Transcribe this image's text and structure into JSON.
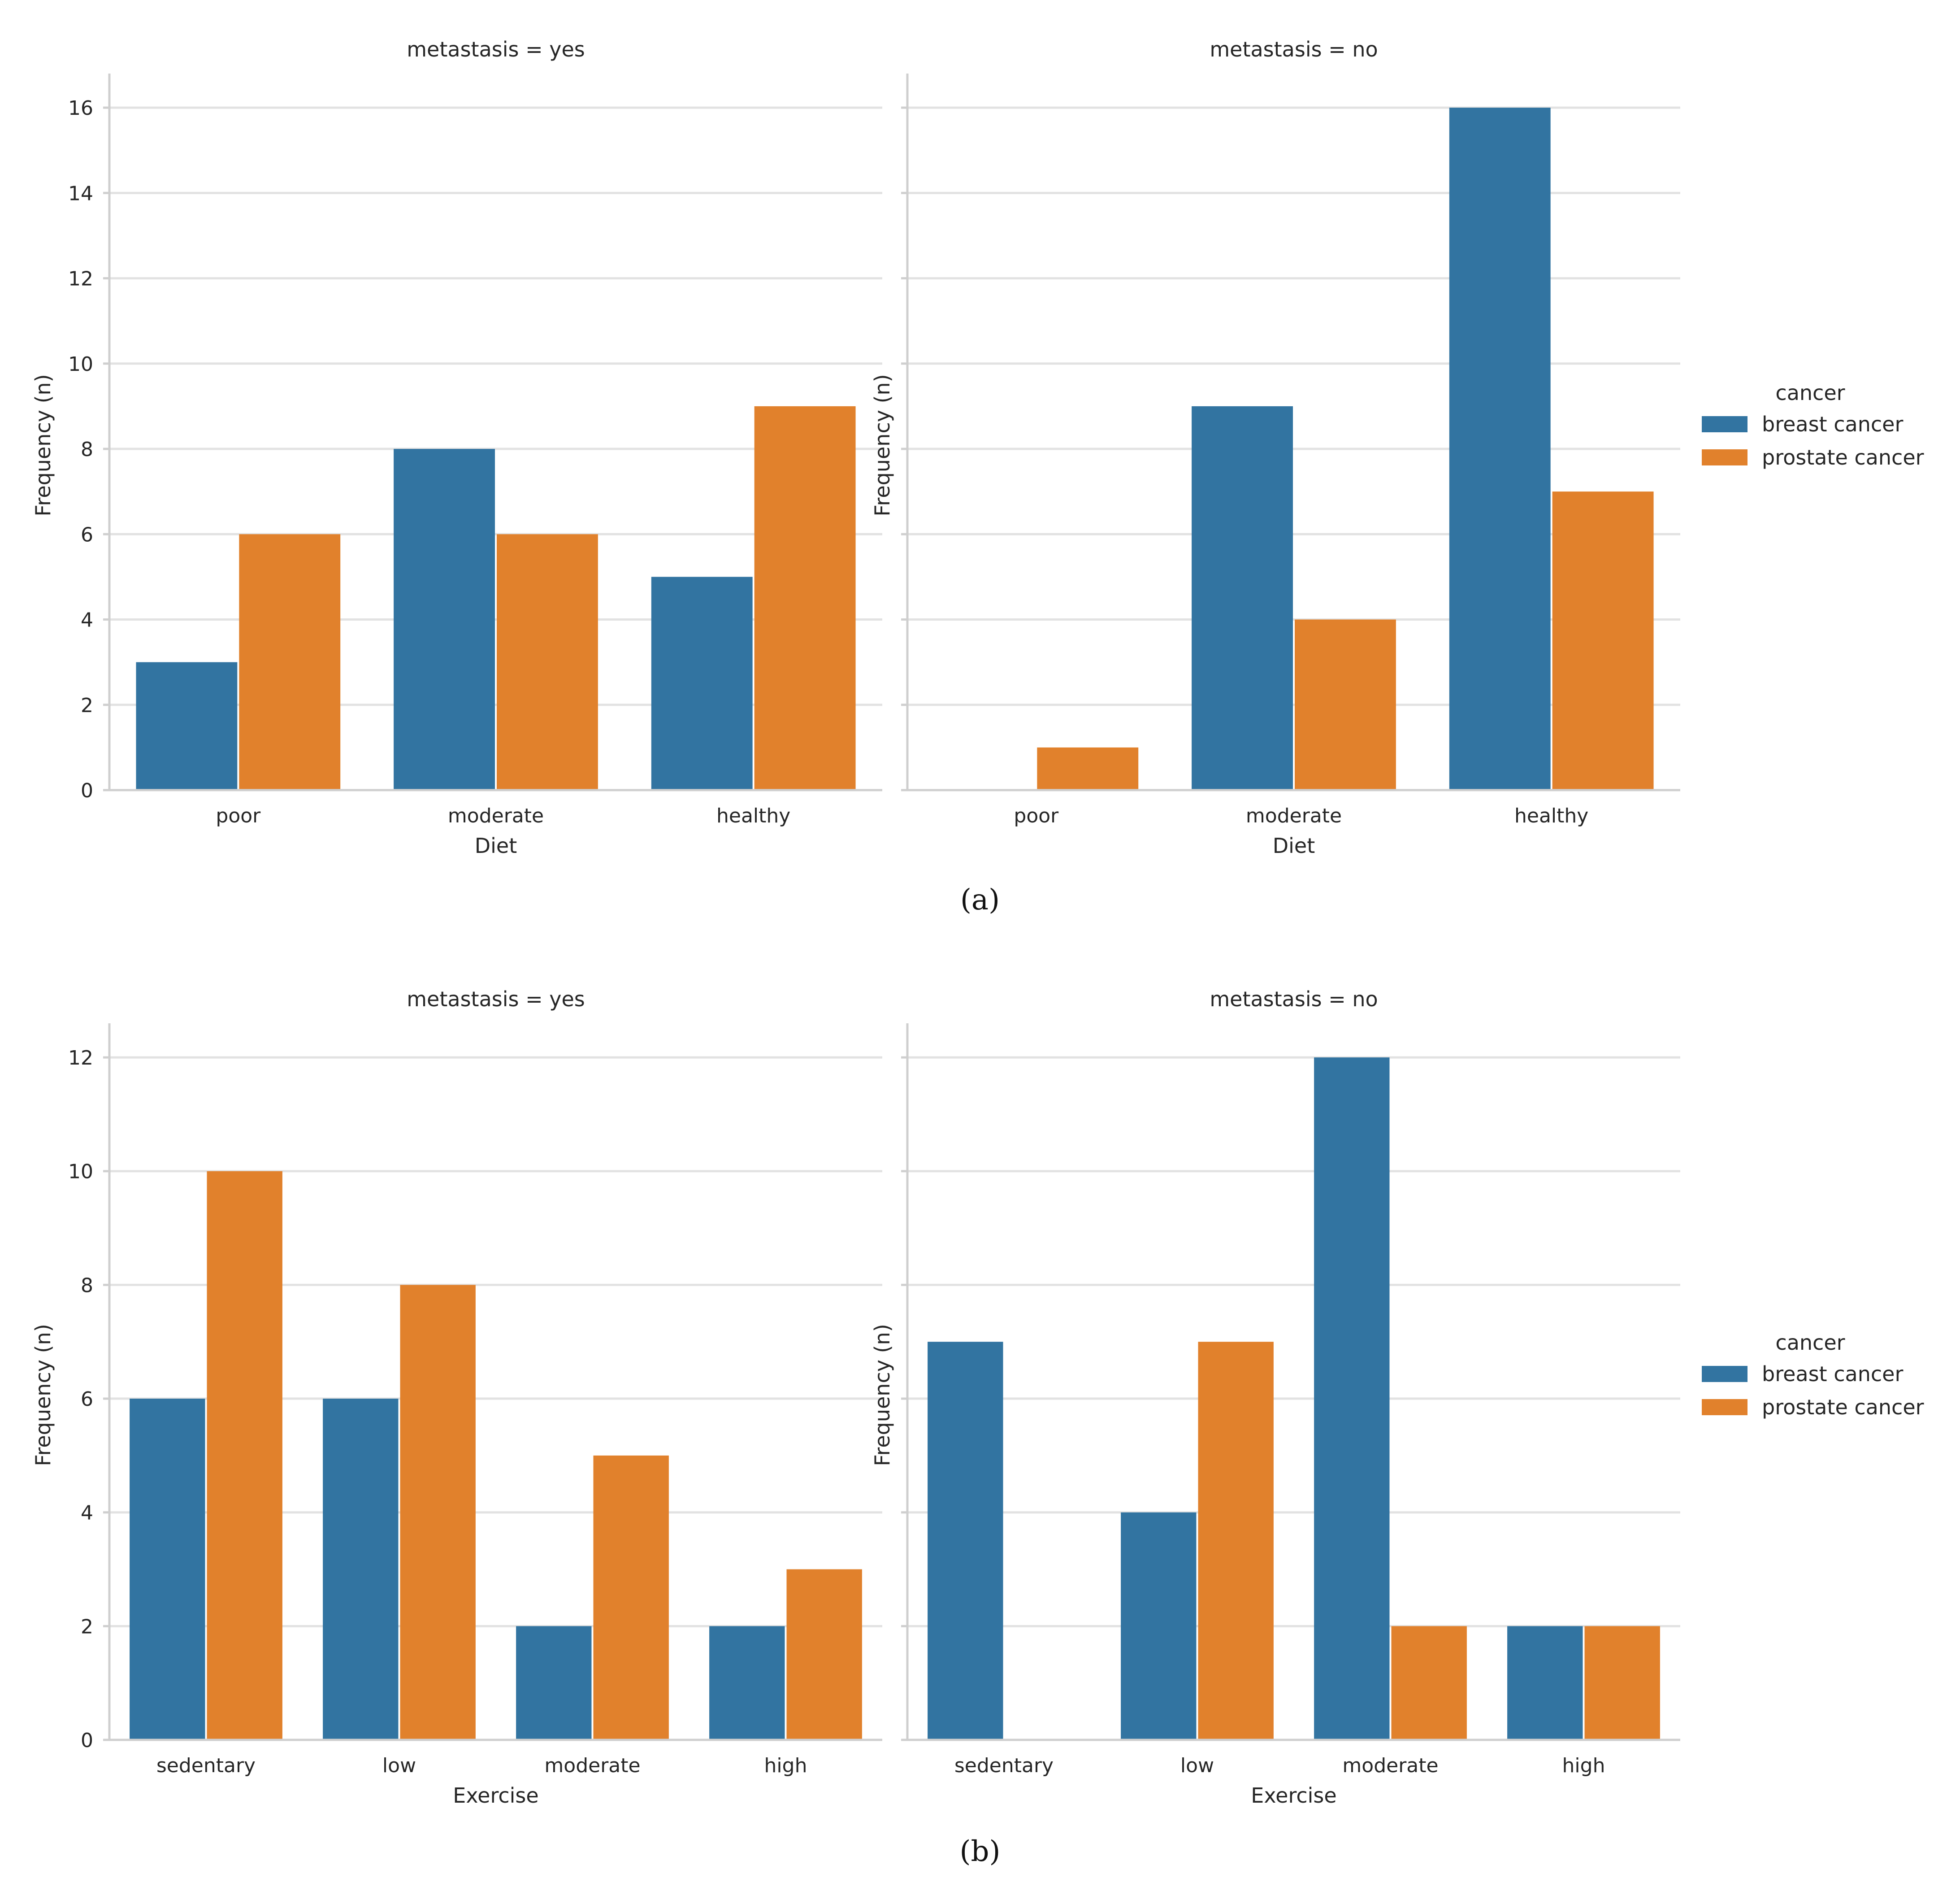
{
  "chart_data": [
    {
      "type": "bar",
      "panel": "a",
      "caption": "(a)",
      "facets": [
        {
          "title": "metastasis = yes",
          "categories": [
            "poor",
            "moderate",
            "healthy"
          ],
          "series": [
            {
              "name": "breast cancer",
              "values": [
                3,
                8,
                5
              ]
            },
            {
              "name": "prostate cancer",
              "values": [
                6,
                6,
                9
              ]
            }
          ]
        },
        {
          "title": "metastasis = no",
          "categories": [
            "poor",
            "moderate",
            "healthy"
          ],
          "series": [
            {
              "name": "breast cancer",
              "values": [
                0,
                9,
                16
              ]
            },
            {
              "name": "prostate cancer",
              "values": [
                1,
                4,
                7
              ]
            }
          ]
        }
      ],
      "xlabel": "Diet",
      "ylabel": "Frequency (n)",
      "ylim": [
        0,
        16.8
      ],
      "yticks": [
        0,
        2,
        4,
        6,
        8,
        10,
        12,
        14,
        16
      ],
      "grid": true,
      "legend": {
        "title": "cancer",
        "placement": "right",
        "entries": [
          "breast cancer",
          "prostate cancer"
        ]
      }
    },
    {
      "type": "bar",
      "panel": "b",
      "caption": "(b)",
      "facets": [
        {
          "title": "metastasis = yes",
          "categories": [
            "sedentary",
            "low",
            "moderate",
            "high"
          ],
          "series": [
            {
              "name": "breast cancer",
              "values": [
                6,
                6,
                2,
                2
              ]
            },
            {
              "name": "prostate cancer",
              "values": [
                10,
                8,
                5,
                3
              ]
            }
          ]
        },
        {
          "title": "metastasis = no",
          "categories": [
            "sedentary",
            "low",
            "moderate",
            "high"
          ],
          "series": [
            {
              "name": "breast cancer",
              "values": [
                7,
                4,
                12,
                2
              ]
            },
            {
              "name": "prostate cancer",
              "values": [
                0,
                7,
                2,
                2
              ]
            }
          ]
        }
      ],
      "xlabel": "Exercise",
      "ylabel": "Frequency (n)",
      "ylim": [
        0,
        12.6
      ],
      "yticks": [
        0,
        2,
        4,
        6,
        8,
        10,
        12
      ],
      "grid": true,
      "legend": {
        "title": "cancer",
        "placement": "right",
        "entries": [
          "breast cancer",
          "prostate cancer"
        ]
      }
    }
  ],
  "colors": {
    "breast cancer": "#3274a1",
    "prostate cancer": "#e1812c"
  }
}
